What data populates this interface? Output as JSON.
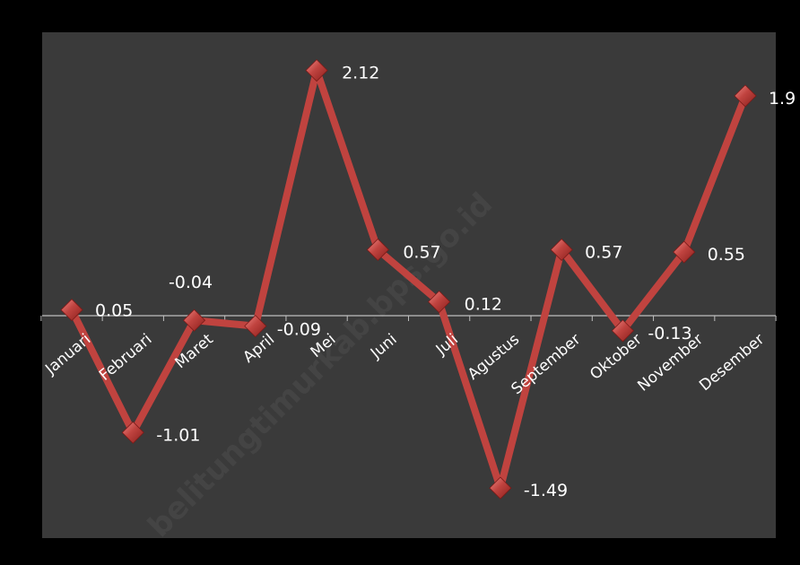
{
  "watermark": "belitungtimurkab.bps.go.id",
  "colors": {
    "background": "#000000",
    "plot_area": "#3a3a3a",
    "line": "#c0433f",
    "marker": "#c0433f",
    "axis": "#bfbfbf",
    "text": "#ffffff"
  },
  "chart_data": {
    "type": "line",
    "categories": [
      "Januari",
      "Februari",
      "Maret",
      "April",
      "Mei",
      "Juni",
      "Juli",
      "Agustus",
      "September",
      "Oktober",
      "November",
      "Desember"
    ],
    "values": [
      0.05,
      -1.01,
      -0.04,
      -0.09,
      2.12,
      0.57,
      0.12,
      -1.49,
      0.57,
      -0.13,
      0.55,
      1.9
    ],
    "data_labels": [
      "0.05",
      "-1.01",
      "-0.04",
      "-0.09",
      "2.12",
      "0.57",
      "0.12",
      "-1.49",
      "0.57",
      "-0.13",
      "0.55",
      "1.9"
    ],
    "title": "",
    "xlabel": "",
    "ylabel": "",
    "ylim": [
      -1.75,
      2.5
    ],
    "grid": false,
    "legend": "none",
    "marker": "diamond"
  }
}
